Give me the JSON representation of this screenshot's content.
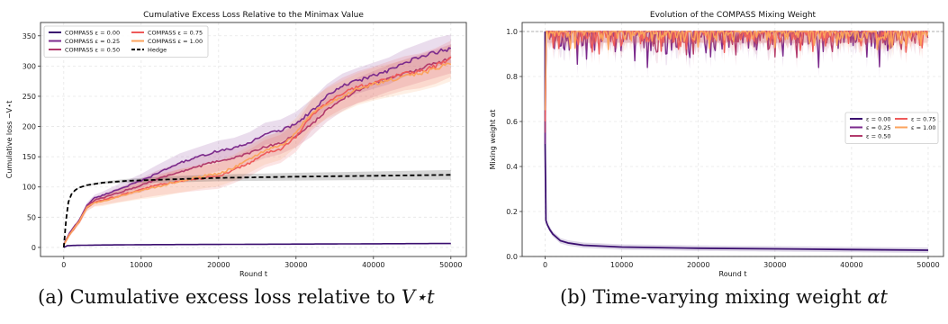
{
  "captions": {
    "a_text": "(a) Cumulative excess loss relative to ",
    "a_math": "V⋆t",
    "b_text": "(b) Time-varying mixing weight ",
    "b_math": "αt"
  },
  "chart_data": [
    {
      "type": "line",
      "title": "Cumulative Excess Loss Relative to the Minimax Value",
      "xlabel": "Round t",
      "ylabel": "Cumulative loss −V⋆t",
      "xlim": [
        -3000,
        52000
      ],
      "ylim": [
        -15,
        372
      ],
      "xticks": [
        0,
        10000,
        20000,
        30000,
        40000,
        50000
      ],
      "yticks": [
        0,
        50,
        100,
        150,
        200,
        250,
        300,
        350
      ],
      "grid": true,
      "legend_position": "top-left",
      "legend_columns": 2,
      "series": [
        {
          "name": "COMPASS ε = 0.00",
          "color": "#3b0f70",
          "band": 0,
          "x": [
            0,
            500,
            2000,
            5000,
            10000,
            20000,
            30000,
            40000,
            50000
          ],
          "y": [
            0,
            3,
            3.5,
            4,
            4.5,
            5,
            5.5,
            6,
            6.5
          ]
        },
        {
          "name": "COMPASS ε = 0.25",
          "color": "#7b2a8c",
          "band": 12,
          "x": [
            0,
            800,
            2000,
            3000,
            4000,
            5000,
            7000,
            10000,
            12000,
            15000,
            18000,
            20000,
            22000,
            24000,
            26000,
            28000,
            30000,
            32000,
            34000,
            36000,
            38000,
            40000,
            42000,
            44000,
            46000,
            48000,
            50000
          ],
          "y": [
            5,
            25,
            45,
            70,
            82,
            86,
            96,
            110,
            122,
            140,
            152,
            160,
            164,
            173,
            188,
            193,
            205,
            225,
            250,
            267,
            276,
            284,
            292,
            305,
            314,
            323,
            328
          ]
        },
        {
          "name": "COMPASS ε = 0.50",
          "color": "#b23a6c",
          "band": 12,
          "x": [
            0,
            800,
            2000,
            3000,
            4000,
            5000,
            7000,
            10000,
            12000,
            15000,
            18000,
            20000,
            22000,
            24000,
            26000,
            28000,
            30000,
            32000,
            34000,
            36000,
            38000,
            40000,
            42000,
            44000,
            46000,
            48000,
            50000
          ],
          "y": [
            5,
            24,
            44,
            68,
            78,
            82,
            90,
            103,
            113,
            125,
            136,
            143,
            148,
            156,
            166,
            173,
            185,
            203,
            228,
            246,
            260,
            270,
            280,
            288,
            296,
            304,
            312
          ]
        },
        {
          "name": "COMPASS ε = 0.75",
          "color": "#ee5a5a",
          "band": 15,
          "x": [
            0,
            800,
            2000,
            3000,
            4000,
            5000,
            7000,
            10000,
            12000,
            15000,
            18000,
            20000,
            22000,
            24000,
            26000,
            28000,
            30000,
            32000,
            34000,
            36000,
            38000,
            40000,
            42000,
            44000,
            46000,
            48000,
            50000
          ],
          "y": [
            4,
            22,
            42,
            65,
            75,
            78,
            85,
            96,
            103,
            110,
            115,
            118,
            128,
            140,
            155,
            163,
            182,
            218,
            240,
            255,
            265,
            272,
            280,
            288,
            292,
            300,
            312
          ]
        },
        {
          "name": "COMPASS ε = 1.00",
          "color": "#fba35c",
          "band": 15,
          "x": [
            0,
            800,
            2000,
            3000,
            4000,
            5000,
            7000,
            10000,
            12000,
            15000,
            18000,
            20000,
            22000,
            24000,
            26000,
            28000,
            30000,
            32000,
            34000,
            36000,
            38000,
            40000,
            42000,
            44000,
            46000,
            48000,
            50000
          ],
          "y": [
            4,
            22,
            43,
            66,
            74,
            76,
            84,
            94,
            100,
            110,
            118,
            122,
            132,
            146,
            160,
            168,
            190,
            222,
            238,
            250,
            262,
            270,
            276,
            282,
            288,
            295,
            305
          ]
        },
        {
          "name": "Hedge",
          "color": "#000000",
          "dashed": true,
          "band": 4,
          "x": [
            0,
            300,
            600,
            1000,
            1500,
            2000,
            3000,
            5000,
            8000,
            10000,
            15000,
            20000,
            30000,
            40000,
            50000
          ],
          "y": [
            0,
            45,
            75,
            88,
            95,
            99,
            103,
            107,
            110,
            111,
            113,
            115,
            117,
            118.5,
            120
          ]
        }
      ]
    },
    {
      "type": "line",
      "title": "Evolution of the COMPASS Mixing Weight",
      "xlabel": "Round t",
      "ylabel": "Mixing weight αt",
      "xlim": [
        -3000,
        52000
      ],
      "ylim": [
        0,
        1.04
      ],
      "xticks": [
        0,
        10000,
        20000,
        30000,
        40000,
        50000
      ],
      "yticks": [
        0.0,
        0.2,
        0.4,
        0.6,
        0.8,
        1.0
      ],
      "reference_line": 1.0,
      "grid": true,
      "legend_position": "center-right",
      "legend_columns": 2,
      "series": [
        {
          "name": "ε = 0.00",
          "color": "#3b0f70",
          "x": [
            0,
            100,
            300,
            600,
            1000,
            2000,
            3000,
            5000,
            10000,
            20000,
            30000,
            40000,
            50000
          ],
          "y": [
            0.5,
            0.16,
            0.14,
            0.12,
            0.1,
            0.07,
            0.06,
            0.05,
            0.042,
            0.037,
            0.034,
            0.031,
            0.028
          ]
        },
        {
          "name": "ε = 0.25",
          "color": "#7b2a8c",
          "dip": 0.09,
          "end": 46000
        },
        {
          "name": "ε = 0.50",
          "color": "#b23a6c",
          "dip": 0.06,
          "end": 50000
        },
        {
          "name": "ε = 0.75",
          "color": "#ee5a5a",
          "dip": 0.05,
          "end": 50000
        },
        {
          "name": "ε = 1.00",
          "color": "#fba35c",
          "dip": 0.04,
          "end": 50000
        }
      ]
    }
  ]
}
